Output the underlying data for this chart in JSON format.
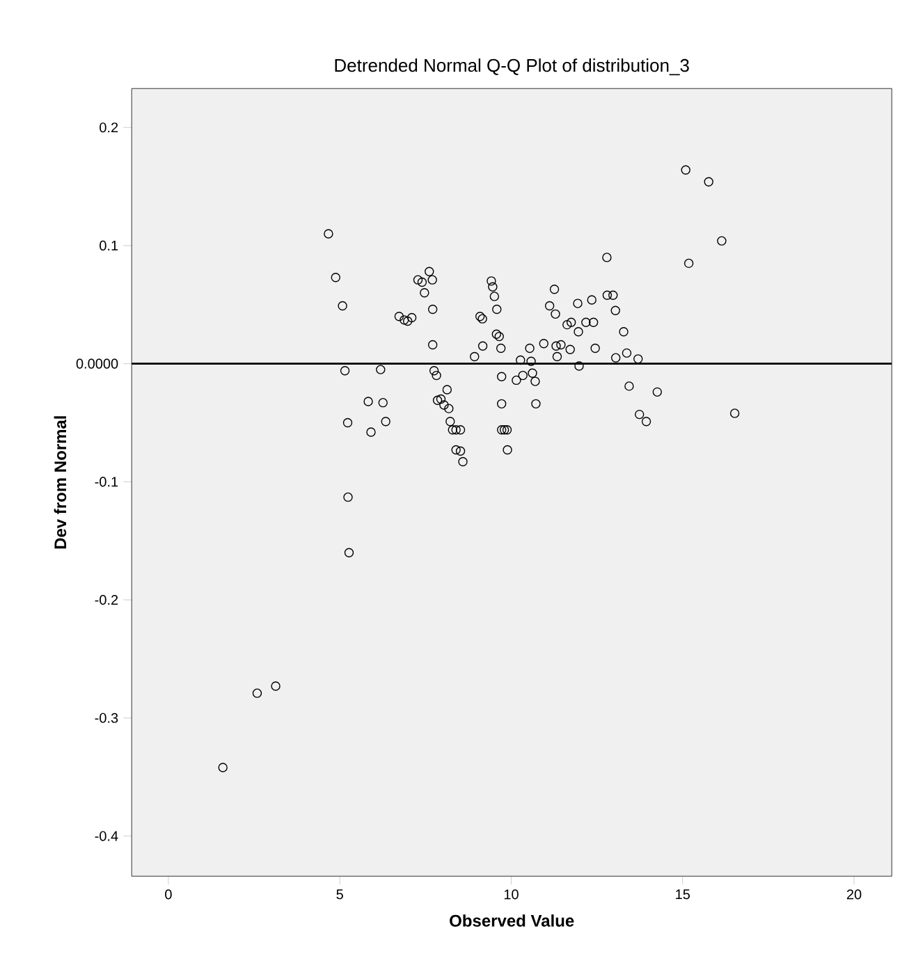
{
  "chart_data": {
    "type": "scatter",
    "title": "Detrended Normal Q-Q Plot of distribution_3",
    "xlabel": "Observed Value",
    "ylabel": "Dev from Normal",
    "xlim": [
      -1.07,
      21.1
    ],
    "ylim": [
      -0.434,
      0.233
    ],
    "xticks": [
      0,
      5,
      10,
      15,
      20
    ],
    "yticks": [
      {
        "value": -0.4,
        "label": "-0.4"
      },
      {
        "value": -0.3,
        "label": "-0.3"
      },
      {
        "value": -0.2,
        "label": "-0.2"
      },
      {
        "value": -0.1,
        "label": "-0.1"
      },
      {
        "value": 0,
        "label": "0.0000"
      },
      {
        "value": 0.1,
        "label": "0.1"
      },
      {
        "value": 0.2,
        "label": "0.2"
      }
    ],
    "grid": false,
    "marker": "circle",
    "ref_lines": [
      {
        "axis": "y",
        "value": 0,
        "color": "#000000"
      }
    ],
    "series": [
      {
        "color": "#000000",
        "x": [
          1.59,
          2.59,
          3.13,
          4.67,
          4.88,
          5.08,
          5.15,
          5.23,
          5.24,
          5.27,
          5.83,
          5.91,
          6.19,
          6.26,
          6.34,
          6.73,
          6.88,
          6.98,
          7.1,
          7.28,
          7.4,
          7.47,
          7.61,
          7.7,
          7.71,
          7.71,
          7.75,
          7.82,
          7.85,
          7.95,
          8.04,
          8.13,
          8.18,
          8.22,
          8.29,
          8.39,
          8.52,
          8.39,
          8.52,
          8.59,
          8.93,
          9.09,
          9.16,
          9.17,
          9.42,
          9.46,
          9.51,
          9.58,
          9.57,
          9.65,
          9.7,
          9.72,
          9.72,
          9.72,
          9.8,
          9.88,
          9.89,
          10.15,
          10.27,
          10.34,
          10.54,
          10.58,
          10.62,
          10.7,
          10.72,
          10.95,
          11.12,
          11.26,
          11.29,
          11.31,
          11.34,
          11.45,
          11.63,
          11.72,
          11.75,
          11.94,
          11.96,
          11.98,
          12.18,
          12.35,
          12.4,
          12.45,
          12.79,
          12.8,
          12.97,
          13.04,
          13.05,
          13.28,
          13.37,
          13.44,
          13.7,
          13.74,
          13.94,
          14.26,
          15.09,
          15.18,
          15.76,
          16.14,
          16.52
        ],
        "values": [
          -0.342,
          -0.279,
          -0.273,
          0.11,
          0.073,
          0.049,
          -0.006,
          -0.05,
          -0.113,
          -0.16,
          -0.032,
          -0.058,
          -0.005,
          -0.033,
          -0.049,
          0.04,
          0.037,
          0.036,
          0.039,
          0.071,
          0.069,
          0.06,
          0.078,
          0.071,
          0.046,
          0.016,
          -0.006,
          -0.01,
          -0.031,
          -0.03,
          -0.035,
          -0.022,
          -0.038,
          -0.049,
          -0.056,
          -0.056,
          -0.056,
          -0.073,
          -0.074,
          -0.083,
          0.006,
          0.04,
          0.038,
          0.015,
          0.07,
          0.065,
          0.057,
          0.046,
          0.025,
          0.023,
          0.013,
          -0.011,
          -0.034,
          -0.056,
          -0.056,
          -0.056,
          -0.073,
          -0.014,
          0.003,
          -0.01,
          0.013,
          0.002,
          -0.008,
          -0.015,
          -0.034,
          0.017,
          0.049,
          0.063,
          0.042,
          0.015,
          0.006,
          0.016,
          0.033,
          0.012,
          0.035,
          0.051,
          0.027,
          -0.002,
          0.035,
          0.054,
          0.035,
          0.013,
          0.09,
          0.058,
          0.058,
          0.045,
          0.005,
          0.027,
          0.009,
          -0.019,
          0.004,
          -0.043,
          -0.049,
          -0.024,
          0.164,
          0.085,
          0.154,
          0.104,
          -0.042
        ]
      }
    ]
  }
}
